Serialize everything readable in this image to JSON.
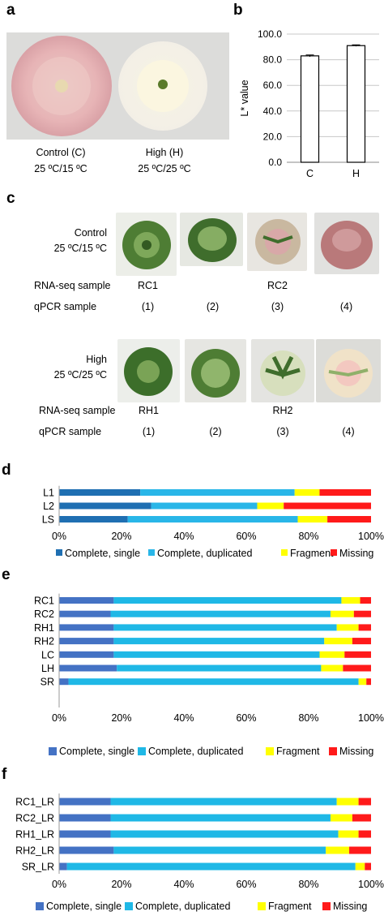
{
  "panels": {
    "a": "a",
    "b": "b",
    "c": "c",
    "d": "d",
    "e": "e",
    "f": "f"
  },
  "panel_a": {
    "control_caption_1": "Control (C)",
    "control_caption_2": "25 ºC/15 ºC",
    "high_caption_1": "High (H)",
    "high_caption_2": "25 ºC/25 ºC"
  },
  "panel_c": {
    "control_label_1": "Control",
    "control_label_2": "25 ºC/15 ºC",
    "high_label_1": "High",
    "high_label_2": "25 ºC/25 ºC",
    "rnaseq_label": "RNA-seq sample",
    "qpcr_label_control": "qPCR  sample",
    "qpcr_label_high": "qPCR sample",
    "control_rnaseq": [
      "RC1",
      "",
      "RC2",
      ""
    ],
    "high_rnaseq": [
      "RH1",
      "",
      "RH2",
      ""
    ],
    "qpcr": [
      "(1)",
      "(2)",
      "(3)",
      "(4)"
    ]
  },
  "colors": {
    "d_single": "#1f6fb2",
    "d_dup": "#29b6e8",
    "fragment": "#ffff00",
    "missing": "#ff1a1a",
    "e_single": "#4472c4",
    "e_dup": "#1fb8e6"
  },
  "chart_data": [
    {
      "id": "b",
      "type": "bar",
      "categories": [
        "C",
        "H"
      ],
      "values": [
        83.0,
        91.0
      ],
      "error": [
        0.7,
        0.6
      ],
      "ylabel": "L* value",
      "ylim": [
        0,
        100
      ],
      "yticks": [
        "0.0",
        "20.0",
        "40.0",
        "60.0",
        "80.0",
        "100.0"
      ],
      "grid": true
    },
    {
      "id": "d",
      "type": "bar",
      "orientation": "horizontal",
      "stacked": true,
      "categories": [
        "L1",
        "L2",
        "LS"
      ],
      "series": [
        {
          "name": "Complete, single",
          "values": [
            26,
            29.5,
            22
          ]
        },
        {
          "name": "Complete, duplicated",
          "values": [
            49.5,
            34,
            54.5
          ]
        },
        {
          "name": "Fragment",
          "values": [
            8,
            8.5,
            9.5
          ]
        },
        {
          "name": "Missing",
          "values": [
            16.5,
            28,
            14
          ]
        }
      ],
      "xticks": [
        "0%",
        "20%",
        "40%",
        "60%",
        "80%",
        "100%"
      ],
      "xlim": [
        0,
        100
      ],
      "legend": "bottom"
    },
    {
      "id": "e",
      "type": "bar",
      "orientation": "horizontal",
      "stacked": true,
      "categories": [
        "RC1",
        "RC2",
        "RH1",
        "RH2",
        "LC",
        "LH",
        "SR"
      ],
      "series": [
        {
          "name": "Complete, single",
          "values": [
            17.5,
            16.5,
            17.5,
            17.5,
            17.5,
            18.5,
            3
          ]
        },
        {
          "name": "Complete, duplicated",
          "values": [
            73,
            70.5,
            71.5,
            67.5,
            66,
            65.5,
            93
          ]
        },
        {
          "name": "Fragment",
          "values": [
            6,
            7.5,
            7,
            9,
            8,
            7,
            2.5
          ]
        },
        {
          "name": "Missing",
          "values": [
            3.5,
            5.5,
            4,
            6,
            8.5,
            9,
            1.5
          ]
        }
      ],
      "xticks": [
        "0%",
        "20%",
        "40%",
        "60%",
        "80%",
        "100%"
      ],
      "xlim": [
        0,
        100
      ],
      "legend": "bottom"
    },
    {
      "id": "f",
      "type": "bar",
      "orientation": "horizontal",
      "stacked": true,
      "categories": [
        "RC1_LR",
        "RC2_LR",
        "RH1_LR",
        "RH2_LR",
        "SR_LR"
      ],
      "series": [
        {
          "name": "Complete, single",
          "values": [
            16.5,
            16.5,
            16.5,
            17.5,
            2.5
          ]
        },
        {
          "name": "Complete, duplicated",
          "values": [
            72.5,
            70.5,
            73,
            68,
            92.5
          ]
        },
        {
          "name": "Fragment",
          "values": [
            7,
            7,
            6.5,
            7.5,
            3
          ]
        },
        {
          "name": "Missing",
          "values": [
            4,
            6,
            4,
            7,
            2
          ]
        }
      ],
      "xticks": [
        "0%",
        "20%",
        "40%",
        "60%",
        "80%",
        "100%"
      ],
      "xlim": [
        0,
        100
      ],
      "legend": "bottom"
    }
  ]
}
